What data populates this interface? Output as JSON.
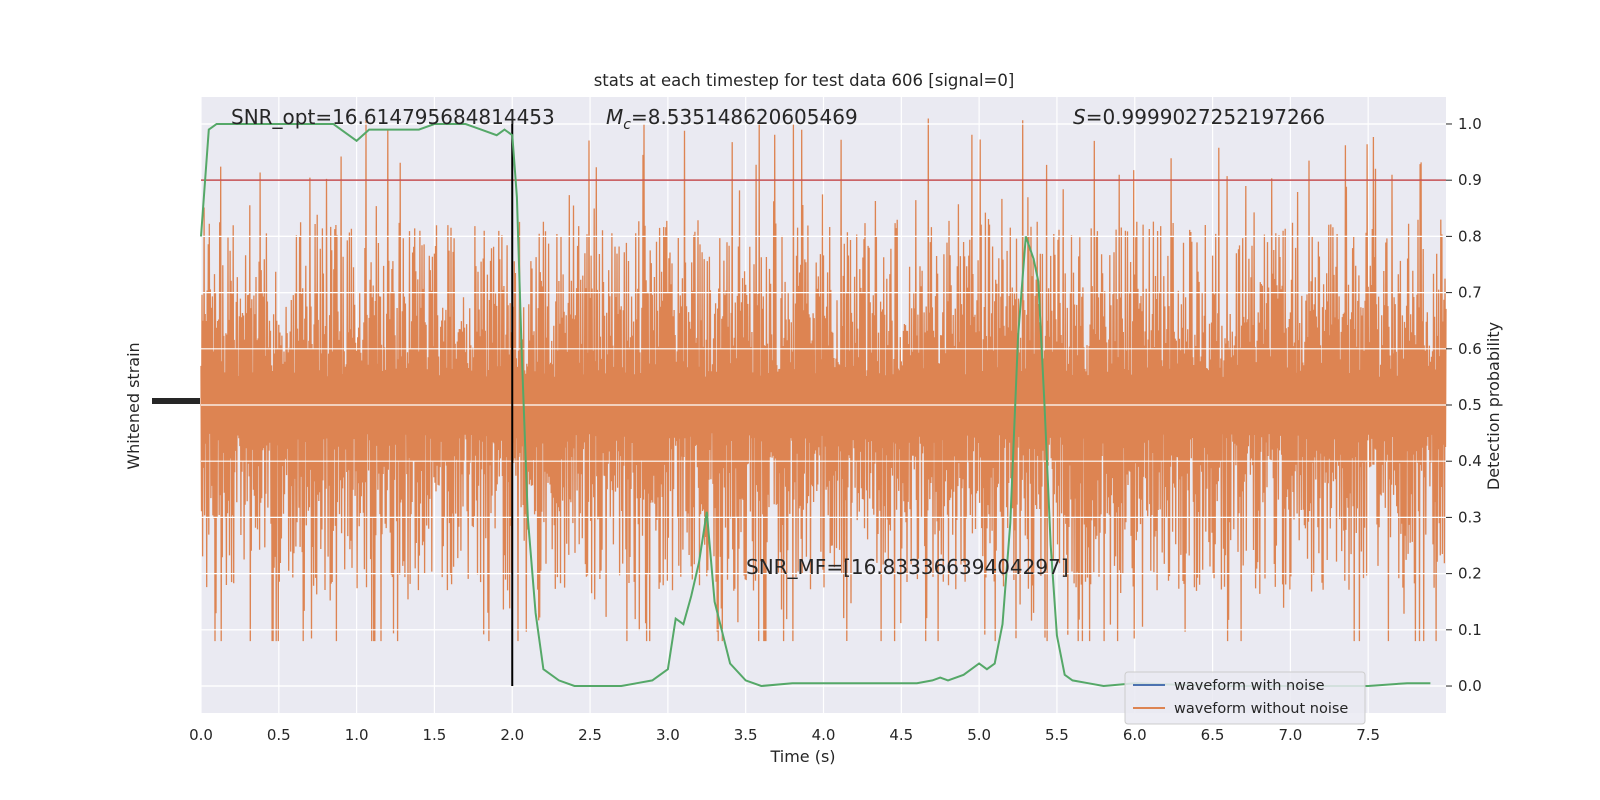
{
  "chart_data": {
    "type": "line",
    "title": "stats at each timestep for test data 606 [signal=0]",
    "xlabel": "Time (s)",
    "ylabel_left": "Whitened strain",
    "ylabel_right": "Detection probability",
    "xlim": [
      0,
      8.0
    ],
    "ylim_right": [
      -0.048,
      1.048
    ],
    "x_ticks": [
      0.0,
      0.5,
      1.0,
      1.5,
      2.0,
      2.5,
      3.0,
      3.5,
      4.0,
      4.5,
      5.0,
      5.5,
      6.0,
      6.5,
      7.0,
      7.5
    ],
    "x_tick_labels": [
      "0.0",
      "0.5",
      "1.0",
      "1.5",
      "2.0",
      "2.5",
      "3.0",
      "3.5",
      "4.0",
      "4.5",
      "5.0",
      "5.5",
      "6.0",
      "6.5",
      "7.0",
      "7.5"
    ],
    "right_ticks": [
      0.0,
      0.1,
      0.2,
      0.3,
      0.4,
      0.5,
      0.6,
      0.7,
      0.8,
      0.9,
      1.0
    ],
    "right_tick_labels": [
      "0.0",
      "0.1",
      "0.2",
      "0.3",
      "0.4",
      "0.5",
      "0.6",
      "0.7",
      "0.8",
      "0.9",
      "1.0"
    ],
    "grid": true,
    "legend_position": "lower right",
    "series": [
      {
        "name": "waveform with noise",
        "color": "#4c72b0"
      },
      {
        "name": "waveform without noise",
        "color": "#dd8452"
      }
    ],
    "strain": {
      "description": "dense whitened-strain trace (orange); in right-axis units, core band",
      "core_low": 0.3,
      "core_high": 0.7,
      "envelope_low": 0.08,
      "envelope_high": 1.01,
      "color": "#dd8452"
    },
    "detection_probability": {
      "color": "#55a868",
      "x": [
        0.0,
        0.05,
        0.1,
        0.2,
        0.3,
        0.5,
        0.7,
        0.85,
        0.95,
        1.0,
        1.08,
        1.15,
        1.25,
        1.4,
        1.5,
        1.6,
        1.7,
        1.8,
        1.9,
        1.95,
        2.0,
        2.03,
        2.06,
        2.1,
        2.15,
        2.2,
        2.3,
        2.4,
        2.5,
        2.6,
        2.7,
        2.8,
        2.9,
        2.95,
        3.0,
        3.05,
        3.1,
        3.15,
        3.2,
        3.25,
        3.3,
        3.4,
        3.5,
        3.6,
        3.8,
        4.0,
        4.2,
        4.4,
        4.6,
        4.7,
        4.75,
        4.8,
        4.9,
        5.0,
        5.05,
        5.1,
        5.15,
        5.2,
        5.25,
        5.3,
        5.35,
        5.38,
        5.42,
        5.46,
        5.5,
        5.55,
        5.6,
        5.7,
        5.8,
        6.0,
        6.5,
        7.0,
        7.5,
        7.75,
        7.8,
        7.9
      ],
      "y": [
        0.8,
        0.99,
        1.0,
        1.0,
        1.0,
        1.0,
        1.0,
        1.0,
        0.98,
        0.97,
        0.99,
        0.99,
        0.99,
        0.99,
        1.0,
        1.0,
        1.0,
        0.99,
        0.98,
        0.99,
        0.98,
        0.87,
        0.6,
        0.3,
        0.13,
        0.03,
        0.01,
        0.0,
        0.0,
        0.0,
        0.0,
        0.005,
        0.01,
        0.02,
        0.03,
        0.12,
        0.11,
        0.16,
        0.22,
        0.31,
        0.15,
        0.04,
        0.01,
        0.0,
        0.005,
        0.005,
        0.005,
        0.005,
        0.005,
        0.01,
        0.015,
        0.01,
        0.02,
        0.04,
        0.03,
        0.04,
        0.11,
        0.29,
        0.62,
        0.8,
        0.76,
        0.72,
        0.5,
        0.25,
        0.09,
        0.02,
        0.01,
        0.005,
        0.0,
        0.005,
        0.0,
        0.0,
        0.0,
        0.005,
        0.005,
        0.005
      ]
    },
    "threshold": {
      "y": 0.9,
      "color": "#c44e52"
    },
    "marker_line": {
      "x": 2.0,
      "y_range": [
        0.0,
        1.0
      ],
      "color": "#000000"
    },
    "annotations": {
      "snr_opt": "SNR_opt=16.614795684814453",
      "mc_symbol": "M",
      "mc_sub": "c",
      "mc_value": "=8.535148620605469",
      "s_symbol": "S",
      "s_value": "=0.9999027252197266",
      "snr_mf": "SNR_MF=[16.83336639404297]"
    }
  }
}
